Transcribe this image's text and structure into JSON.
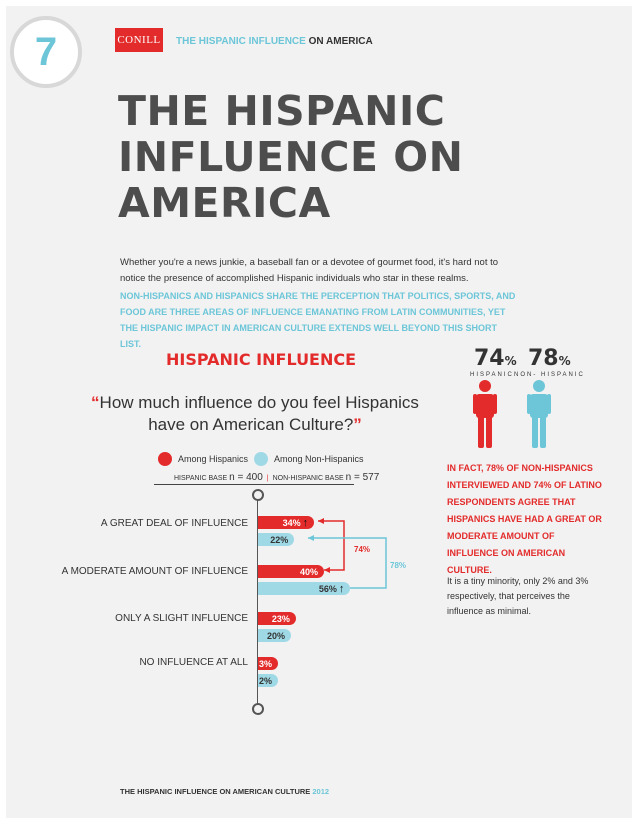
{
  "page_number": "7",
  "logo": {
    "text": "CONILL"
  },
  "header": {
    "title_highlight": "THE HISPANIC INFLUENCE",
    "title_rest": " ON AMERICA"
  },
  "title": {
    "line1": "THE HISPANIC",
    "line2": "INFLUENCE ON",
    "line3": "AMERICA"
  },
  "intro": {
    "text": "Whether you're a news junkie, a baseball fan or a devotee of gourmet food, it's hard not to notice the presence of accomplished Hispanic individuals who star in these realms.",
    "emphasis": "NON-HISPANICS AND HISPANICS SHARE THE PERCEPTION THAT POLITICS, SPORTS, AND FOOD ARE THREE AREAS OF INFLUENCE EMANATING FROM LATIN COMMUNITIES, YET THE HISPANIC IMPACT IN AMERICAN CULTURE EXTENDS WELL BEYOND THIS SHORT LIST."
  },
  "section_heading": "HISPANIC INFLUENCE",
  "question": {
    "open_quote": "“",
    "text": "How much influence do you feel Hispanics have on American Culture?",
    "close_quote": "”"
  },
  "legend": {
    "hispanic": "Among Hispanics",
    "non_hispanic": "Among Non-Hispanics"
  },
  "base": {
    "hispanic_label": "HISPANIC BASE",
    "hispanic_n": "n = 400",
    "sep": "|",
    "non_hispanic_label": "NON-HISPANIC BASE",
    "non_hispanic_n": "n = 577"
  },
  "colors": {
    "hispanic": "#e32b2b",
    "non_hispanic": "#9fd9e6",
    "accent": "#6cc6d8"
  },
  "chart_data": {
    "type": "bar",
    "orientation": "horizontal",
    "categories": [
      "A GREAT DEAL OF INFLUENCE",
      "A MODERATE AMOUNT OF INFLUENCE",
      "ONLY A SLIGHT INFLUENCE",
      "NO INFLUENCE AT ALL"
    ],
    "series": [
      {
        "name": "Among Hispanics",
        "values": [
          34,
          40,
          23,
          3
        ],
        "labels": [
          "34%",
          "40%",
          "23%",
          "3%"
        ]
      },
      {
        "name": "Among Non-Hispanics",
        "values": [
          22,
          56,
          20,
          2
        ],
        "labels": [
          "22%",
          "56%",
          "20%",
          "2%"
        ]
      }
    ],
    "combined": {
      "hispanic": "74%",
      "non_hispanic": "78%"
    }
  },
  "stats": {
    "hispanic_value": "74",
    "non_hispanic_value": "78",
    "pct": "%",
    "hispanic_label": "HISPANIC",
    "non_hispanic_label": "NON- HISPANIC"
  },
  "sidebar": {
    "highlight": "IN FACT, 78% OF NON-HISPANICS INTERVIEWED AND 74% OF LATINO RESPONDENTS AGREE THAT HISPANICS HAVE HAD A GREAT OR MODERATE AMOUNT OF INFLUENCE ON AMERICAN CULTURE.",
    "body": " It is a tiny minority, only 2% and 3% respectively, that perceives the influence as minimal."
  },
  "footer": {
    "text": "THE HISPANIC INFLUENCE ON AMERICAN CULTURE ",
    "year": "2012"
  }
}
